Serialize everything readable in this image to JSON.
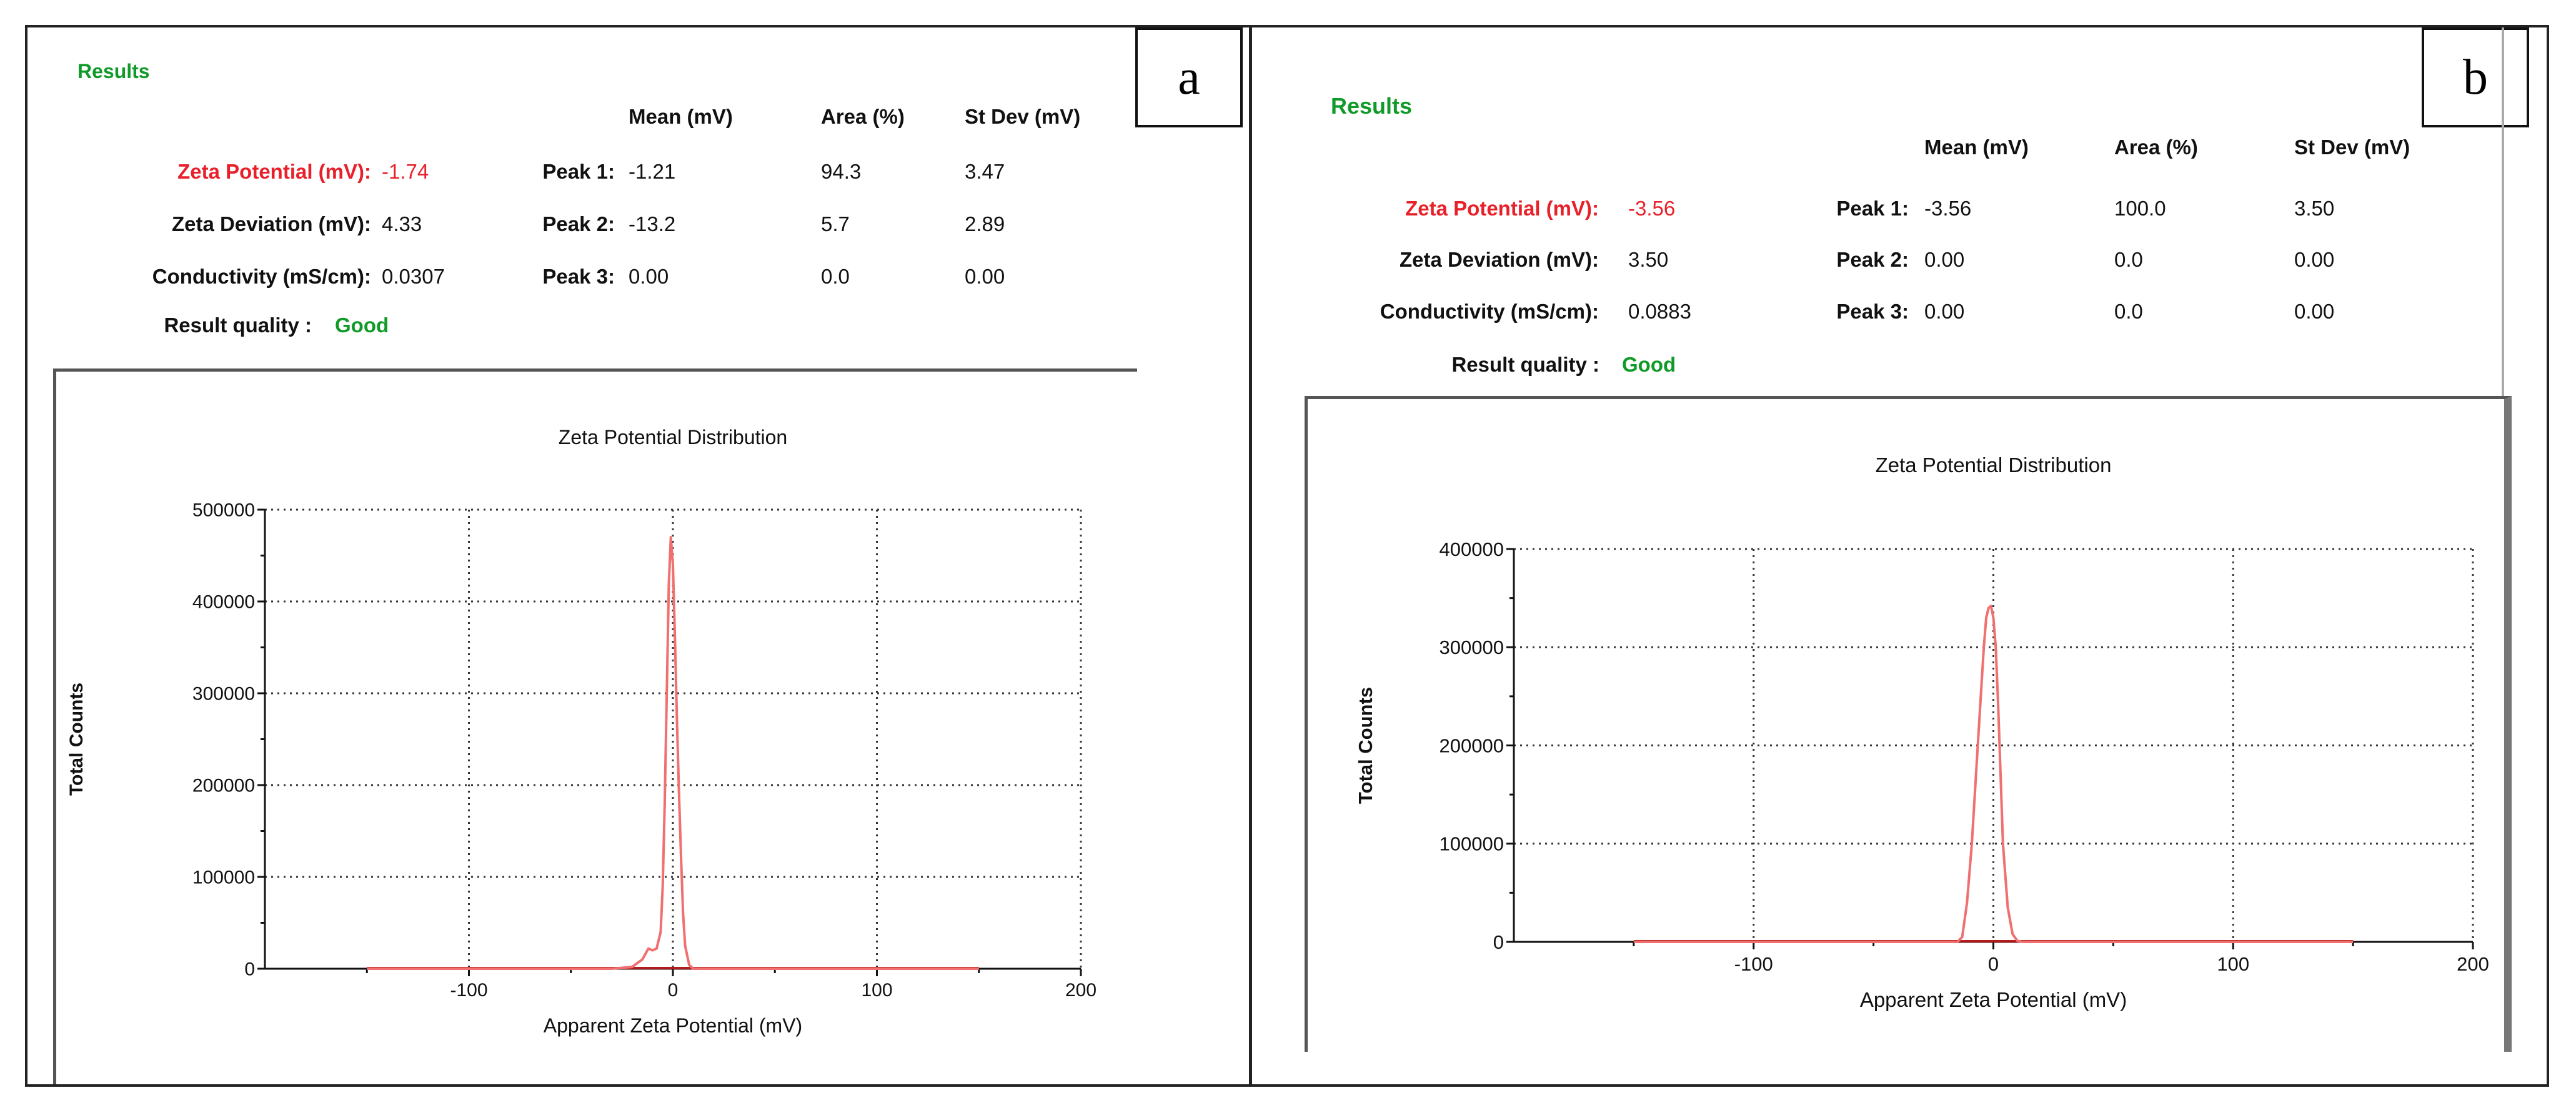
{
  "panels": [
    {
      "letter": "a",
      "results_title": "Results",
      "zeta_potential_label": "Zeta Potential (mV):",
      "zeta_potential_value": "-1.74",
      "zeta_deviation_label": "Zeta Deviation (mV):",
      "zeta_deviation_value": "4.33",
      "conductivity_label": "Conductivity (mS/cm):",
      "conductivity_value": "0.0307",
      "quality_label": "Result quality :",
      "quality_value": "Good",
      "columns": [
        "Mean (mV)",
        "Area (%)",
        "St Dev (mV)"
      ],
      "peaks": [
        {
          "label": "Peak 1:",
          "mean": "-1.21",
          "area": "94.3",
          "stdev": "3.47"
        },
        {
          "label": "Peak 2:",
          "mean": "-13.2",
          "area": "5.7",
          "stdev": "2.89"
        },
        {
          "label": "Peak 3:",
          "mean": "0.00",
          "area": "0.0",
          "stdev": "0.00"
        }
      ]
    },
    {
      "letter": "b",
      "results_title": "Results",
      "zeta_potential_label": "Zeta Potential (mV):",
      "zeta_potential_value": "-3.56",
      "zeta_deviation_label": "Zeta Deviation (mV):",
      "zeta_deviation_value": "3.50",
      "conductivity_label": "Conductivity (mS/cm):",
      "conductivity_value": "0.0883",
      "quality_label": "Result quality :",
      "quality_value": "Good",
      "columns": [
        "Mean (mV)",
        "Area (%)",
        "St Dev (mV)"
      ],
      "peaks": [
        {
          "label": "Peak 1:",
          "mean": "-3.56",
          "area": "100.0",
          "stdev": "3.50"
        },
        {
          "label": "Peak 2:",
          "mean": "0.00",
          "area": "0.0",
          "stdev": "0.00"
        },
        {
          "label": "Peak 3:",
          "mean": "0.00",
          "area": "0.0",
          "stdev": "0.00"
        }
      ]
    }
  ],
  "chart_data": [
    {
      "type": "line",
      "title": "Zeta Potential Distribution",
      "xlabel": "Apparent Zeta Potential (mV)",
      "ylabel": "Total Counts",
      "xlim": [
        -200,
        200
      ],
      "ylim": [
        0,
        500000
      ],
      "xticks": [
        -100,
        0,
        100,
        200
      ],
      "yticks": [
        0,
        100000,
        200000,
        300000,
        400000,
        500000
      ],
      "grid": true,
      "series_color": "#f07070",
      "baseline_color": "#b01c1c",
      "baseline_range": [
        -150,
        150
      ],
      "x": [
        -150,
        -30,
        -20,
        -15,
        -12,
        -10,
        -8,
        -6,
        -5,
        -4,
        -3,
        -2,
        -1,
        0,
        1,
        2,
        3,
        4,
        5,
        6,
        8,
        10,
        15,
        150
      ],
      "y": [
        0,
        0,
        2000,
        10000,
        22000,
        20000,
        22000,
        40000,
        90000,
        180000,
        300000,
        420000,
        470000,
        440000,
        360000,
        270000,
        190000,
        120000,
        60000,
        25000,
        4000,
        0,
        0,
        0
      ]
    },
    {
      "type": "line",
      "title": "Zeta Potential Distribution",
      "xlabel": "Apparent Zeta Potential (mV)",
      "ylabel": "Total Counts",
      "xlim": [
        -200,
        200
      ],
      "ylim": [
        0,
        400000
      ],
      "xticks": [
        -100,
        0,
        100,
        200
      ],
      "yticks": [
        0,
        100000,
        200000,
        300000,
        400000
      ],
      "grid": true,
      "series_color": "#f07070",
      "baseline_color": "#b01c1c",
      "baseline_range": [
        -150,
        150
      ],
      "x": [
        -150,
        -15,
        -13,
        -11,
        -9,
        -7,
        -5,
        -4,
        -3,
        -2,
        -1,
        0,
        1,
        2,
        3,
        4,
        6,
        8,
        10,
        12,
        150
      ],
      "y": [
        0,
        0,
        5000,
        40000,
        100000,
        180000,
        260000,
        300000,
        330000,
        340000,
        342000,
        330000,
        300000,
        240000,
        170000,
        100000,
        35000,
        8000,
        1000,
        0,
        0
      ]
    }
  ]
}
